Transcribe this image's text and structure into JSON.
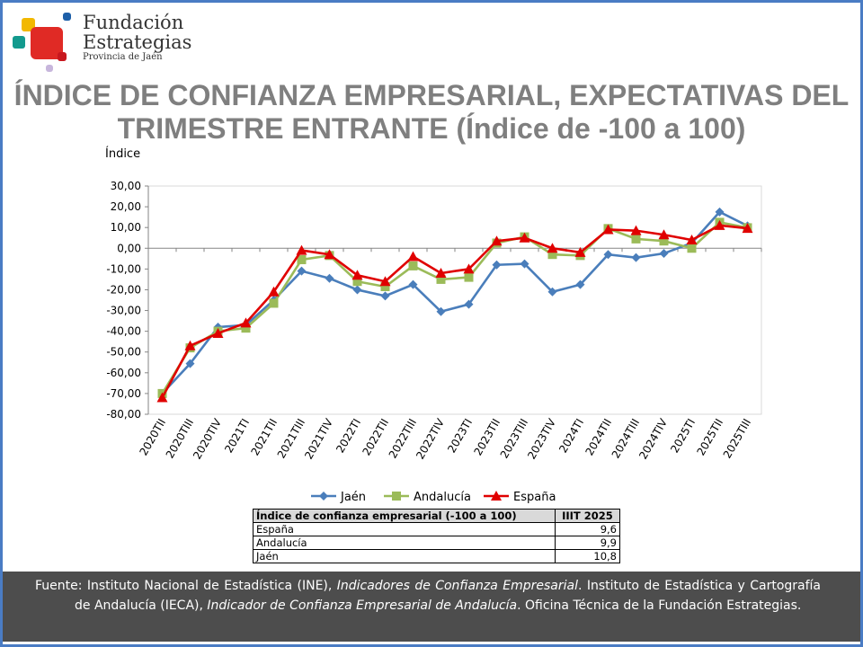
{
  "logo": {
    "line1": "Fundación",
    "line2": "Estrategias",
    "line3": "Provincia de Jaén"
  },
  "title": "ÍNDICE DE CONFIANZA EMPRESARIAL, EXPECTATIVAS DEL TRIMESTRE ENTRANTE (Índice de -100 a 100)",
  "colors": {
    "border": "#4a7cc4",
    "jaen": "#4a7ebb",
    "andalucia": "#9bbb59",
    "espana": "#e00000",
    "footer": "#4d4d4d"
  },
  "chart_data": {
    "type": "line",
    "ylabel": "Índice",
    "ylim": [
      -80,
      30
    ],
    "yticks": [
      "30,00",
      "20,00",
      "10,00",
      "0,00",
      "-10,00",
      "-20,00",
      "-30,00",
      "-40,00",
      "-50,00",
      "-60,00",
      "-70,00",
      "-80,00"
    ],
    "grid": false,
    "legend": "bottom",
    "categories": [
      "2020TII",
      "2020TIII",
      "2020TIV",
      "2021TI",
      "2021TII",
      "2021TIII",
      "2021TIV",
      "2022TI",
      "2022TII",
      "2022TIII",
      "2022TIV",
      "2023TI",
      "2023TII",
      "2023TIII",
      "2023TIV",
      "2024TI",
      "2024TII",
      "2024TIII",
      "2024TIV",
      "2025TI",
      "2025TII",
      "2025TIII"
    ],
    "series": [
      {
        "name": "Jaén",
        "marker": "diamond",
        "values": [
          -70,
          -55.6,
          -38,
          -37,
          -25,
          -11,
          -14.5,
          -20,
          -23,
          -17.5,
          -30.5,
          -27,
          -8,
          -7.5,
          -21,
          -17.5,
          -3,
          -4.5,
          -2.5,
          2.5,
          17.5,
          10.8
        ]
      },
      {
        "name": "Andalucía",
        "marker": "square",
        "values": [
          -70,
          -48,
          -40,
          -38.5,
          -26.5,
          -5.5,
          -3.5,
          -16,
          -18.5,
          -8.5,
          -15,
          -14,
          2.5,
          5.5,
          -3,
          -3.5,
          9.5,
          4.5,
          3.5,
          0,
          12.5,
          9.9
        ]
      },
      {
        "name": "España",
        "marker": "triangle",
        "values": [
          -72,
          -47,
          -41,
          -36,
          -21,
          -1,
          -3,
          -13,
          -16,
          -4,
          -12,
          -10,
          3.5,
          5,
          0,
          -2,
          9,
          8.5,
          6.5,
          4,
          11,
          9.6
        ]
      }
    ]
  },
  "table": {
    "header": [
      "Índice de confianza empresarial (-100 a 100)",
      "IIIT 2025"
    ],
    "rows": [
      [
        "España",
        "9,6"
      ],
      [
        "Andalucía",
        "9,9"
      ],
      [
        "Jaén",
        "10,8"
      ]
    ]
  },
  "footer": {
    "t1": "Fuente: Instituto Nacional de Estadística (INE), ",
    "t2": "Indicadores de Confianza Empresarial",
    "t3": ". Instituto de Estadística y Cartografía de Andalucía (IECA), ",
    "t4": "Indicador de Confianza Empresarial de Andalucía",
    "t5": ". Oficina Técnica de la Fundación Estrategias."
  }
}
